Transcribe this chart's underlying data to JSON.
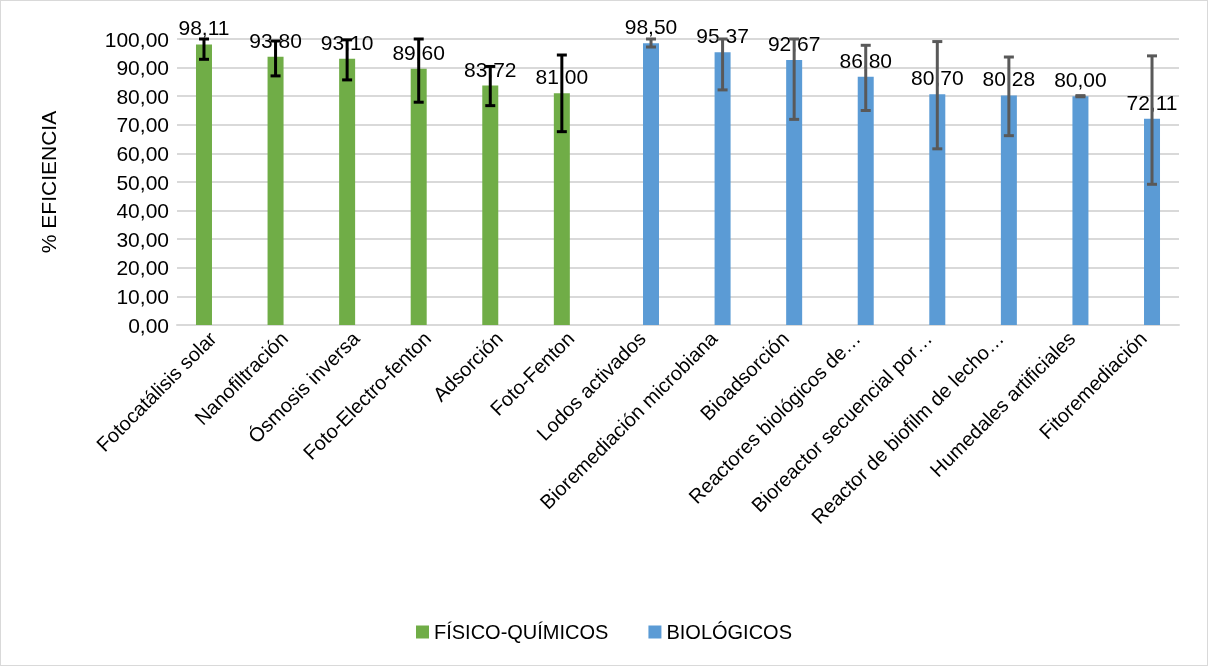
{
  "chart_data": {
    "type": "bar",
    "ylabel": "% EFICIENCIA",
    "categories": [
      "Fotocatálisis solar",
      "Nanofiltración",
      "Ósmosis inversa",
      "Foto-Electro-fenton",
      "Adsorción",
      "Foto-Fenton",
      "Lodos activados",
      "Bioremediación microbiana",
      "Bioadsorción",
      "Reactores biológicos de…",
      "Bioreactor secuencial por…",
      "Reactor de biofilm de lecho…",
      "Humedales artificiales",
      "Fitoremediación"
    ],
    "series": [
      {
        "name": "FÍSICO-QUÍMICOS",
        "color": "#70ad47",
        "values": [
          98.11,
          93.8,
          93.1,
          89.6,
          83.72,
          81.0,
          null,
          null,
          null,
          null,
          null,
          null,
          null,
          null
        ],
        "value_labels": [
          "98,11",
          "93,80",
          "93,10",
          "89,60",
          "83,72",
          "81,00",
          null,
          null,
          null,
          null,
          null,
          null,
          null,
          null
        ],
        "errors": [
          [
            92.9,
            100
          ],
          [
            87.1,
            99.3
          ],
          [
            85.7,
            99.7
          ],
          [
            77.9,
            100
          ],
          [
            76.7,
            90.4
          ],
          [
            67.6,
            94.4
          ],
          null,
          null,
          null,
          null,
          null,
          null,
          null,
          null
        ]
      },
      {
        "name": "BIOLÓGICOS",
        "color": "#5b9bd5",
        "values": [
          null,
          null,
          null,
          null,
          null,
          null,
          98.5,
          95.37,
          92.67,
          86.8,
          80.7,
          80.28,
          80.0,
          72.11
        ],
        "value_labels": [
          null,
          null,
          null,
          null,
          null,
          null,
          "98,50",
          "95,37",
          "92,67",
          "86,80",
          "80,70",
          "80,28",
          "80,00",
          "72,11"
        ],
        "errors": [
          null,
          null,
          null,
          null,
          null,
          null,
          [
            97.2,
            100
          ],
          [
            82.2,
            100
          ],
          [
            71.9,
            100
          ],
          [
            75.0,
            97.8
          ],
          [
            61.6,
            99.1
          ],
          [
            66.2,
            93.7
          ],
          [
            79.8,
            80.2
          ],
          [
            49.2,
            94.1
          ]
        ]
      }
    ],
    "ylim": [
      0,
      100
    ],
    "yticks": [
      {
        "value": 0,
        "label": "0,00"
      },
      {
        "value": 10,
        "label": "10,00"
      },
      {
        "value": 20,
        "label": "20,00"
      },
      {
        "value": 30,
        "label": "30,00"
      },
      {
        "value": 40,
        "label": "40,00"
      },
      {
        "value": 50,
        "label": "50,00"
      },
      {
        "value": 60,
        "label": "60,00"
      },
      {
        "value": 70,
        "label": "70,00"
      },
      {
        "value": 80,
        "label": "80,00"
      },
      {
        "value": 90,
        "label": "90,00"
      },
      {
        "value": 100,
        "label": "100,00"
      }
    ],
    "grid": true,
    "legend": "bottom"
  }
}
